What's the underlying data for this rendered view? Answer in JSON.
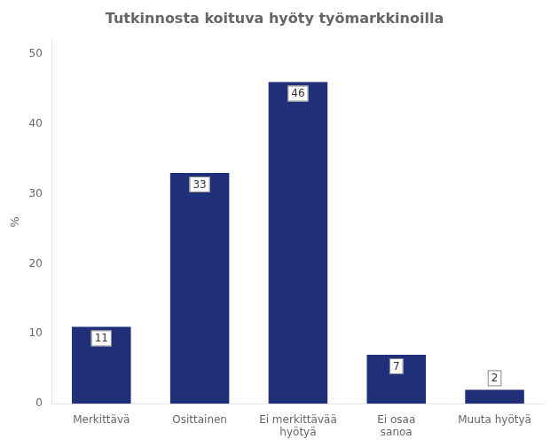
{
  "chart_data": {
    "type": "bar",
    "title": "Tutkinnosta koituva hyöty työmarkkinoilla",
    "categories": [
      "Merkittävä",
      "Osittainen",
      "Ei merkittävää\nhyötyä",
      "Ei osaa\nsanoa",
      "Muuta hyötyä"
    ],
    "values": [
      11,
      33,
      46,
      7,
      2
    ],
    "color": "#1F2F7A",
    "ylabel": "%",
    "ylim": [
      0,
      52
    ],
    "yticks": [
      0,
      10,
      20,
      30,
      40,
      50
    ],
    "grid": false,
    "data_labels": true
  }
}
